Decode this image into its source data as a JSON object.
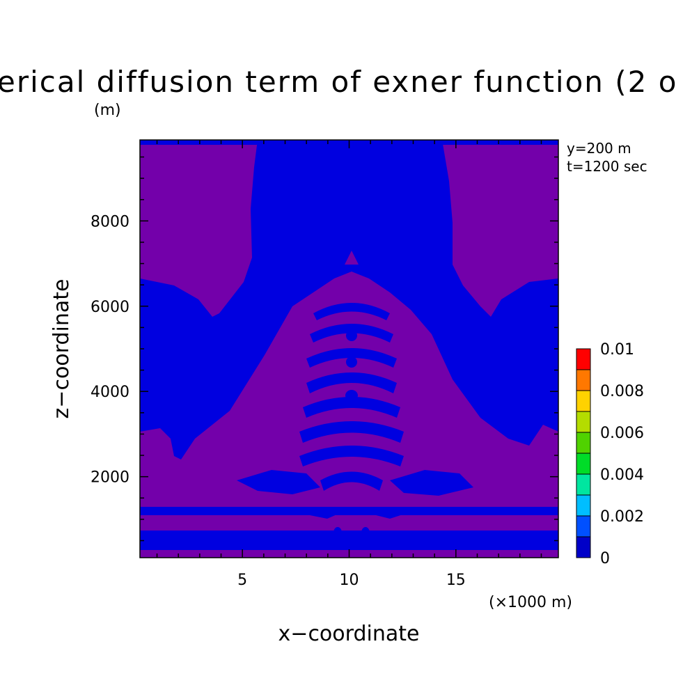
{
  "chart_data": {
    "type": "heatmap",
    "title": "erical diffusion term of exner function (2 o",
    "ylabel": "z−coordinate",
    "yunit": "(m)",
    "xlabel": "x−coordinate",
    "xunit": "(×1000 m)",
    "annotations": [
      "y=200 m",
      "t=1200 sec"
    ],
    "xlim": [
      0.2,
      19.8
    ],
    "ylim": [
      100,
      9900
    ],
    "xticks": [
      5,
      10,
      15
    ],
    "xtick_labels": [
      "5",
      "10",
      "15"
    ],
    "yticks": [
      2000,
      4000,
      6000,
      8000
    ],
    "ytick_labels": [
      "2000",
      "4000",
      "6000",
      "8000"
    ],
    "field_colors": {
      "low": "#0000e0",
      "mid": "#7300aa"
    },
    "colorbar": {
      "min": 0,
      "max": 0.01,
      "levels": [
        0,
        0.001,
        0.002,
        0.003,
        0.004,
        0.005,
        0.006,
        0.007,
        0.008,
        0.009,
        0.01
      ],
      "colors": [
        "#0000c8",
        "#0050ff",
        "#00beff",
        "#00e6a0",
        "#00dc28",
        "#50d200",
        "#b4dc00",
        "#ffd200",
        "#ff7800",
        "#ff0000"
      ],
      "labels": [
        "0.01",
        "0.008",
        "0.006",
        "0.004",
        "0.002",
        "0"
      ]
    }
  }
}
